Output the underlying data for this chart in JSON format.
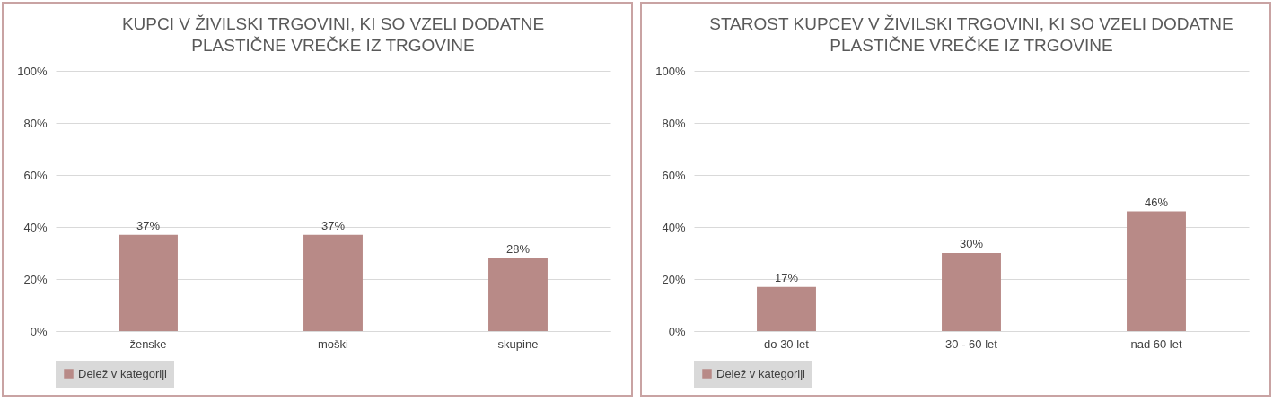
{
  "chart_data": [
    {
      "type": "bar",
      "title": "KUPCI V ŽIVILSKI TRGOVINI, KI SO VZELI DODATNE PLASTIČNE VREČKE IZ TRGOVINE",
      "categories": [
        "ženske",
        "moški",
        "skupine"
      ],
      "series": [
        {
          "name": "Delež v kategoriji",
          "color": "#b88a87",
          "values": [
            37,
            37,
            28
          ],
          "value_labels": [
            "37%",
            "37%",
            "28%"
          ]
        }
      ],
      "ylim": [
        0,
        100
      ],
      "yticks": [
        {
          "value": 0,
          "label": "0%"
        },
        {
          "value": 20,
          "label": "20%"
        },
        {
          "value": 40,
          "label": "40%"
        },
        {
          "value": 60,
          "label": "60%"
        },
        {
          "value": 80,
          "label": "80%"
        },
        {
          "value": 100,
          "label": "100%"
        }
      ],
      "grid": "y",
      "legend": "bottom"
    },
    {
      "type": "bar",
      "title": "STAROST KUPCEV V ŽIVILSKI TRGOVINI, KI SO VZELI DODATNE PLASTIČNE VREČKE IZ TRGOVINE",
      "categories": [
        "do 30 let",
        "30 - 60 let",
        "nad 60 let"
      ],
      "series": [
        {
          "name": "Delež v kategoriji",
          "color": "#b88a87",
          "values": [
            17,
            30,
            46
          ],
          "value_labels": [
            "17%",
            "30%",
            "46%"
          ]
        }
      ],
      "ylim": [
        0,
        100
      ],
      "yticks": [
        {
          "value": 0,
          "label": "0%"
        },
        {
          "value": 20,
          "label": "20%"
        },
        {
          "value": 40,
          "label": "40%"
        },
        {
          "value": 60,
          "label": "60%"
        },
        {
          "value": 80,
          "label": "80%"
        },
        {
          "value": 100,
          "label": "100%"
        }
      ],
      "grid": "y",
      "legend": "bottom"
    }
  ]
}
